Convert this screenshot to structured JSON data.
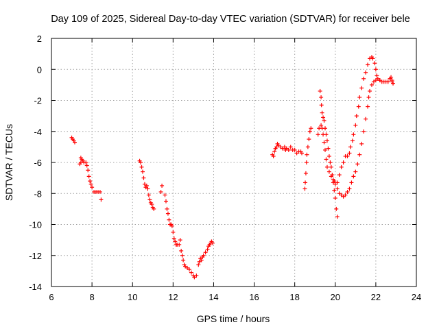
{
  "chart_data": {
    "type": "scatter",
    "title": "Day 109 of 2025, Sidereal Day-to-day VTEC variation (SDTVAR) for receiver bele",
    "xlabel": "GPS time / hours",
    "ylabel": "SDTVAR / TECUs",
    "xlim": [
      6,
      24
    ],
    "ylim": [
      -14,
      2
    ],
    "xticks": [
      6,
      8,
      10,
      12,
      14,
      16,
      18,
      20,
      22,
      24
    ],
    "yticks": [
      2,
      0,
      -2,
      -4,
      -6,
      -8,
      -10,
      -12,
      -14
    ],
    "grid": true,
    "marker": "+",
    "color": "#ff0000",
    "series": [
      {
        "name": "SDTVAR",
        "segments": [
          [
            [
              7.0,
              -4.4
            ],
            [
              7.05,
              -4.5
            ],
            [
              7.1,
              -4.6
            ],
            [
              7.15,
              -4.7
            ]
          ],
          [
            [
              7.45,
              -5.7
            ],
            [
              7.5,
              -5.8
            ],
            [
              7.55,
              -5.9
            ],
            [
              7.6,
              -6.0
            ],
            [
              7.7,
              -6.0
            ],
            [
              7.75,
              -6.2
            ],
            [
              7.8,
              -6.5
            ],
            [
              7.85,
              -6.9
            ],
            [
              7.9,
              -7.2
            ],
            [
              7.95,
              -7.4
            ],
            [
              8.0,
              -7.6
            ],
            [
              8.1,
              -7.9
            ],
            [
              8.2,
              -7.9
            ],
            [
              8.3,
              -7.9
            ],
            [
              8.4,
              -7.9
            ],
            [
              8.45,
              -8.4
            ]
          ],
          [
            [
              7.4,
              -6.1
            ],
            [
              7.45,
              -6.0
            ]
          ],
          [
            [
              10.35,
              -5.9
            ],
            [
              10.4,
              -6.0
            ],
            [
              10.45,
              -6.3
            ],
            [
              10.5,
              -6.6
            ],
            [
              10.55,
              -7.0
            ],
            [
              10.6,
              -7.4
            ],
            [
              10.65,
              -7.6
            ],
            [
              10.7,
              -7.5
            ],
            [
              10.75,
              -7.7
            ],
            [
              10.8,
              -8.1
            ],
            [
              10.85,
              -8.4
            ],
            [
              10.9,
              -8.6
            ],
            [
              10.95,
              -8.7
            ],
            [
              11.0,
              -8.9
            ],
            [
              11.05,
              -9.0
            ]
          ],
          [
            [
              11.4,
              -7.9
            ],
            [
              11.45,
              -7.5
            ]
          ],
          [
            [
              11.6,
              -8.1
            ],
            [
              11.65,
              -8.5
            ],
            [
              11.7,
              -9.0
            ],
            [
              11.75,
              -9.3
            ],
            [
              11.8,
              -9.7
            ],
            [
              11.85,
              -10.0
            ],
            [
              11.9,
              -10.0
            ],
            [
              11.95,
              -10.1
            ],
            [
              12.0,
              -10.5
            ],
            [
              12.05,
              -10.9
            ],
            [
              12.1,
              -11.1
            ],
            [
              12.15,
              -11.3
            ],
            [
              12.2,
              -11.3
            ],
            [
              12.3,
              -11.3
            ],
            [
              12.35,
              -11.0
            ],
            [
              12.4,
              -11.7
            ],
            [
              12.45,
              -12.0
            ],
            [
              12.5,
              -12.3
            ],
            [
              12.55,
              -12.6
            ],
            [
              12.6,
              -12.7
            ],
            [
              12.7,
              -12.8
            ],
            [
              12.8,
              -12.9
            ],
            [
              12.9,
              -13.1
            ],
            [
              13.0,
              -13.3
            ],
            [
              13.05,
              -13.4
            ],
            [
              13.15,
              -13.3
            ]
          ],
          [
            [
              13.25,
              -12.6
            ],
            [
              13.3,
              -12.4
            ],
            [
              13.35,
              -12.2
            ],
            [
              13.4,
              -12.3
            ],
            [
              13.45,
              -12.1
            ],
            [
              13.5,
              -12.0
            ],
            [
              13.6,
              -11.8
            ],
            [
              13.7,
              -11.6
            ],
            [
              13.75,
              -11.4
            ],
            [
              13.8,
              -11.3
            ],
            [
              13.85,
              -11.2
            ],
            [
              13.9,
              -11.1
            ],
            [
              13.95,
              -11.2
            ]
          ],
          [
            [
              16.9,
              -5.5
            ],
            [
              16.95,
              -5.6
            ],
            [
              17.0,
              -5.3
            ],
            [
              17.05,
              -5.1
            ],
            [
              17.1,
              -5.0
            ],
            [
              17.15,
              -4.8
            ],
            [
              17.2,
              -4.9
            ],
            [
              17.3,
              -5.0
            ],
            [
              17.4,
              -5.1
            ],
            [
              17.5,
              -5.0
            ],
            [
              17.55,
              -5.2
            ],
            [
              17.6,
              -5.1
            ],
            [
              17.7,
              -5.2
            ],
            [
              17.8,
              -5.0
            ],
            [
              17.9,
              -5.2
            ],
            [
              18.0,
              -5.2
            ],
            [
              18.1,
              -5.4
            ],
            [
              18.2,
              -5.3
            ],
            [
              18.3,
              -5.3
            ],
            [
              18.35,
              -5.4
            ]
          ],
          [
            [
              18.5,
              -7.7
            ],
            [
              18.52,
              -7.3
            ],
            [
              18.55,
              -6.7
            ],
            [
              18.58,
              -6.0
            ],
            [
              18.6,
              -5.5
            ],
            [
              18.65,
              -5.0
            ],
            [
              18.7,
              -4.5
            ],
            [
              18.75,
              -4.0
            ],
            [
              18.8,
              -3.8
            ]
          ],
          [
            [
              19.15,
              -4.2
            ],
            [
              19.2,
              -3.8
            ],
            [
              19.25,
              -1.4
            ],
            [
              19.3,
              -1.8
            ],
            [
              19.32,
              -2.3
            ],
            [
              19.35,
              -2.8
            ],
            [
              19.4,
              -3.1
            ],
            [
              19.45,
              -3.3
            ],
            [
              19.5,
              -3.8
            ],
            [
              19.55,
              -4.2
            ],
            [
              19.6,
              -4.6
            ],
            [
              19.65,
              -5.1
            ],
            [
              19.7,
              -5.6
            ],
            [
              19.75,
              -6.0
            ],
            [
              19.8,
              -6.3
            ],
            [
              19.85,
              -6.8
            ],
            [
              19.9,
              -7.3
            ],
            [
              19.95,
              -7.8
            ],
            [
              20.0,
              -8.3
            ],
            [
              20.05,
              -9.0
            ],
            [
              20.1,
              -9.5
            ]
          ],
          [
            [
              19.3,
              -3.6
            ],
            [
              19.35,
              -3.8
            ],
            [
              19.4,
              -4.2
            ],
            [
              19.45,
              -4.7
            ],
            [
              19.5,
              -5.2
            ],
            [
              19.55,
              -5.8
            ],
            [
              19.6,
              -6.3
            ],
            [
              19.7,
              -6.6
            ],
            [
              19.8,
              -6.9
            ],
            [
              19.9,
              -7.1
            ],
            [
              20.0,
              -7.4
            ],
            [
              20.1,
              -7.7
            ],
            [
              20.2,
              -8.0
            ],
            [
              20.3,
              -8.1
            ],
            [
              20.4,
              -8.2
            ],
            [
              20.5,
              -8.1
            ],
            [
              20.6,
              -7.9
            ],
            [
              20.7,
              -7.7
            ],
            [
              20.8,
              -7.3
            ],
            [
              20.9,
              -6.9
            ],
            [
              21.0,
              -6.6
            ],
            [
              21.1,
              -6.1
            ],
            [
              21.2,
              -5.5
            ],
            [
              21.3,
              -4.8
            ],
            [
              21.4,
              -4.0
            ],
            [
              21.5,
              -3.2
            ],
            [
              21.6,
              -2.4
            ],
            [
              21.65,
              -1.8
            ],
            [
              21.7,
              -1.4
            ],
            [
              21.8,
              -1.0
            ],
            [
              21.9,
              -0.8
            ],
            [
              22.0,
              -0.7
            ],
            [
              22.2,
              -0.7
            ],
            [
              22.4,
              -0.8
            ],
            [
              22.6,
              -0.8
            ],
            [
              22.7,
              -0.6
            ],
            [
              22.8,
              -0.8
            ],
            [
              22.85,
              -0.9
            ]
          ],
          [
            [
              19.95,
              -7.2
            ],
            [
              20.1,
              -7.3
            ],
            [
              20.2,
              -6.8
            ],
            [
              20.3,
              -6.3
            ],
            [
              20.4,
              -6.0
            ],
            [
              20.5,
              -5.6
            ],
            [
              20.6,
              -5.6
            ],
            [
              20.7,
              -5.4
            ],
            [
              20.75,
              -5.0
            ],
            [
              20.85,
              -4.6
            ],
            [
              20.9,
              -4.2
            ],
            [
              21.0,
              -3.6
            ],
            [
              21.05,
              -3.0
            ],
            [
              21.15,
              -2.4
            ],
            [
              21.2,
              -1.8
            ],
            [
              21.3,
              -1.2
            ],
            [
              21.4,
              -0.6
            ],
            [
              21.5,
              -0.2
            ],
            [
              21.6,
              0.3
            ],
            [
              21.7,
              0.7
            ],
            [
              21.8,
              0.8
            ],
            [
              21.85,
              0.7
            ],
            [
              21.95,
              0.4
            ],
            [
              22.0,
              0.0
            ],
            [
              22.05,
              -0.4
            ],
            [
              22.1,
              -0.6
            ],
            [
              22.2,
              -0.7
            ],
            [
              22.3,
              -0.8
            ],
            [
              22.5,
              -0.8
            ],
            [
              22.6,
              -0.8
            ],
            [
              22.7,
              -0.6
            ],
            [
              22.75,
              -0.5
            ],
            [
              22.8,
              -0.7
            ],
            [
              22.85,
              -0.9
            ]
          ]
        ]
      }
    ]
  }
}
